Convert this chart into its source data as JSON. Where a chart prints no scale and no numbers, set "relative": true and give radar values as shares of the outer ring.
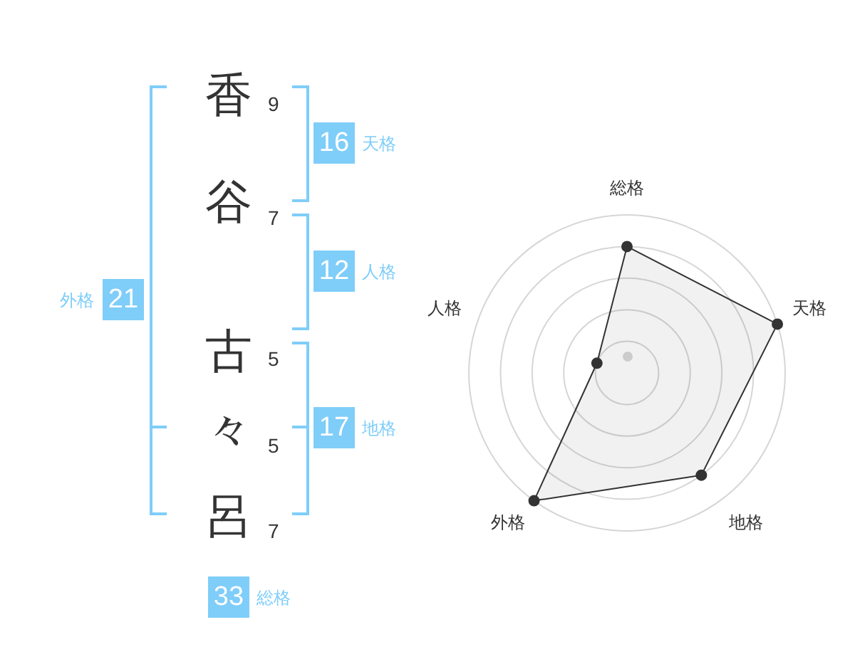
{
  "chart_data": [
    {
      "type": "other",
      "categories": [
        "香",
        "谷",
        "古",
        "々",
        "呂"
      ],
      "values": [
        9,
        7,
        5,
        5,
        7
      ],
      "data_labels": true
    },
    {
      "type": "other",
      "categories": [
        "天格",
        "人格",
        "地格",
        "外格",
        "総格"
      ],
      "values": [
        16,
        12,
        17,
        21,
        33
      ],
      "data_labels": true,
      "color": "#7fcdf9"
    },
    {
      "type": "radar",
      "categories": [
        "総格",
        "天格",
        "地格",
        "外格",
        "人格"
      ],
      "series": [
        {
          "color": "#333333",
          "values": [
            0.8,
            1,
            0.8,
            1,
            0.2
          ]
        }
      ],
      "relative": true,
      "grid": true,
      "marker": "circle"
    }
  ]
}
